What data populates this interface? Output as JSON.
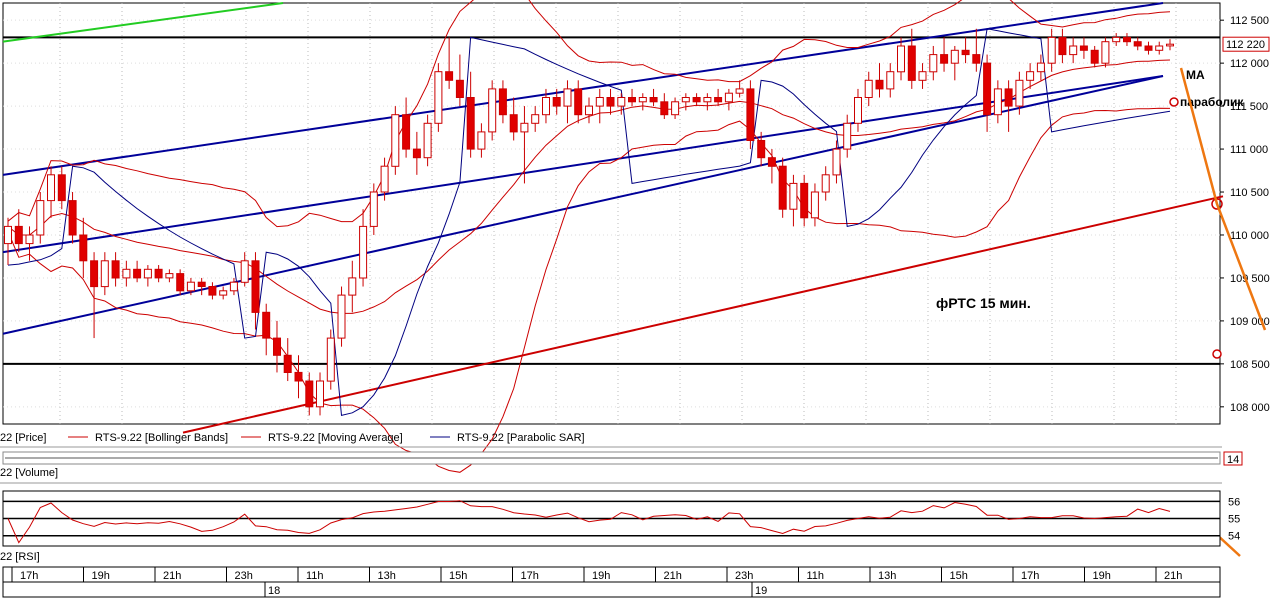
{
  "chart_data": {
    "type": "candlestick",
    "title": "фРТС   15 мин.",
    "price_axis": {
      "ylim": [
        107800,
        112700
      ],
      "ticks": [
        108000,
        108500,
        109000,
        109500,
        110000,
        110500,
        111000,
        111500,
        112000,
        112500
      ],
      "tick_labels": [
        "108 000",
        "108 500",
        "109 000",
        "109 500",
        "110 000",
        "110 500",
        "111 000",
        "111 500",
        "112 000",
        "112 500"
      ],
      "last_price_label": "112 220",
      "last_price": 112220
    },
    "legend": [
      {
        "label": "22 [Price]",
        "color": "#000000"
      },
      {
        "label": "RTS-9.22 [Bollinger Bands]",
        "color": "#cc0000"
      },
      {
        "label": "RTS-9.22 [Moving Average]",
        "color": "#cc0000"
      },
      {
        "label": "RTS-9.22 [Parabolic SAR]",
        "color": "#000080"
      }
    ],
    "annotations": {
      "ma": "MA",
      "sar": "параболик",
      "chart_label": "фРТС   15 мин."
    },
    "horizontal_levels": [
      112300,
      108500
    ],
    "channel_lines": [
      {
        "color": "#000099",
        "from": [
          0,
          110700
        ],
        "to": [
          1160,
          112700
        ]
      },
      {
        "color": "#000099",
        "from": [
          0,
          109800
        ],
        "to": [
          1160,
          111850
        ]
      },
      {
        "color": "#000099",
        "from": [
          0,
          108850
        ],
        "to": [
          1160,
          111850
        ]
      },
      {
        "color": "#cc0000",
        "from": [
          180,
          107700
        ],
        "to": [
          1220,
          110450
        ]
      },
      {
        "color": "#22cc22",
        "from": [
          0,
          112250
        ],
        "to": [
          280,
          112700
        ]
      }
    ],
    "candles": [
      {
        "o": 109900,
        "h": 110200,
        "l": 109650,
        "c": 110100
      },
      {
        "o": 110100,
        "h": 110300,
        "l": 109800,
        "c": 109900
      },
      {
        "o": 109900,
        "h": 110100,
        "l": 109700,
        "c": 110000
      },
      {
        "o": 110000,
        "h": 110500,
        "l": 109900,
        "c": 110400
      },
      {
        "o": 110400,
        "h": 110800,
        "l": 110200,
        "c": 110700
      },
      {
        "o": 110700,
        "h": 110800,
        "l": 110300,
        "c": 110400
      },
      {
        "o": 110400,
        "h": 110500,
        "l": 109900,
        "c": 110000
      },
      {
        "o": 110000,
        "h": 110200,
        "l": 109500,
        "c": 109700
      },
      {
        "o": 109700,
        "h": 109800,
        "l": 108800,
        "c": 109400
      },
      {
        "o": 109400,
        "h": 109800,
        "l": 109300,
        "c": 109700
      },
      {
        "o": 109700,
        "h": 109800,
        "l": 109400,
        "c": 109500
      },
      {
        "o": 109500,
        "h": 109700,
        "l": 109400,
        "c": 109600
      },
      {
        "o": 109600,
        "h": 109700,
        "l": 109450,
        "c": 109500
      },
      {
        "o": 109500,
        "h": 109650,
        "l": 109400,
        "c": 109600
      },
      {
        "o": 109600,
        "h": 109650,
        "l": 109450,
        "c": 109500
      },
      {
        "o": 109500,
        "h": 109600,
        "l": 109450,
        "c": 109550
      },
      {
        "o": 109550,
        "h": 109600,
        "l": 109300,
        "c": 109350
      },
      {
        "o": 109350,
        "h": 109500,
        "l": 109300,
        "c": 109450
      },
      {
        "o": 109450,
        "h": 109500,
        "l": 109300,
        "c": 109400
      },
      {
        "o": 109400,
        "h": 109450,
        "l": 109250,
        "c": 109300
      },
      {
        "o": 109300,
        "h": 109400,
        "l": 109250,
        "c": 109350
      },
      {
        "o": 109350,
        "h": 109500,
        "l": 109300,
        "c": 109450
      },
      {
        "o": 109450,
        "h": 109800,
        "l": 109400,
        "c": 109700
      },
      {
        "o": 109700,
        "h": 109800,
        "l": 108900,
        "c": 109100
      },
      {
        "o": 109100,
        "h": 109200,
        "l": 108600,
        "c": 108800
      },
      {
        "o": 108800,
        "h": 109000,
        "l": 108400,
        "c": 108600
      },
      {
        "o": 108600,
        "h": 108800,
        "l": 108300,
        "c": 108400
      },
      {
        "o": 108400,
        "h": 108600,
        "l": 108100,
        "c": 108300
      },
      {
        "o": 108300,
        "h": 108400,
        "l": 107900,
        "c": 108000
      },
      {
        "o": 108000,
        "h": 108400,
        "l": 107900,
        "c": 108300
      },
      {
        "o": 108300,
        "h": 108900,
        "l": 108200,
        "c": 108800
      },
      {
        "o": 108800,
        "h": 109400,
        "l": 108700,
        "c": 109300
      },
      {
        "o": 109300,
        "h": 109700,
        "l": 109100,
        "c": 109500
      },
      {
        "o": 109500,
        "h": 110300,
        "l": 109400,
        "c": 110100
      },
      {
        "o": 110100,
        "h": 110600,
        "l": 110000,
        "c": 110500
      },
      {
        "o": 110500,
        "h": 110900,
        "l": 110400,
        "c": 110800
      },
      {
        "o": 110800,
        "h": 111500,
        "l": 110700,
        "c": 111400
      },
      {
        "o": 111400,
        "h": 111600,
        "l": 110900,
        "c": 111000
      },
      {
        "o": 111000,
        "h": 111200,
        "l": 110700,
        "c": 110900
      },
      {
        "o": 110900,
        "h": 111400,
        "l": 110800,
        "c": 111300
      },
      {
        "o": 111300,
        "h": 112000,
        "l": 111200,
        "c": 111900
      },
      {
        "o": 111900,
        "h": 112300,
        "l": 111700,
        "c": 111800
      },
      {
        "o": 111800,
        "h": 112100,
        "l": 111500,
        "c": 111600
      },
      {
        "o": 111600,
        "h": 111900,
        "l": 110900,
        "c": 111000
      },
      {
        "o": 111000,
        "h": 111300,
        "l": 110900,
        "c": 111200
      },
      {
        "o": 111200,
        "h": 111800,
        "l": 111100,
        "c": 111700
      },
      {
        "o": 111700,
        "h": 111800,
        "l": 111300,
        "c": 111400
      },
      {
        "o": 111400,
        "h": 111600,
        "l": 111100,
        "c": 111200
      },
      {
        "o": 111200,
        "h": 111500,
        "l": 110600,
        "c": 111300
      },
      {
        "o": 111300,
        "h": 111500,
        "l": 111200,
        "c": 111400
      },
      {
        "o": 111400,
        "h": 111700,
        "l": 111300,
        "c": 111600
      },
      {
        "o": 111600,
        "h": 111700,
        "l": 111400,
        "c": 111500
      },
      {
        "o": 111500,
        "h": 111800,
        "l": 111300,
        "c": 111700
      },
      {
        "o": 111700,
        "h": 111800,
        "l": 111300,
        "c": 111400
      },
      {
        "o": 111400,
        "h": 111600,
        "l": 111300,
        "c": 111500
      },
      {
        "o": 111500,
        "h": 111700,
        "l": 111300,
        "c": 111600
      },
      {
        "o": 111600,
        "h": 111700,
        "l": 111400,
        "c": 111500
      },
      {
        "o": 111500,
        "h": 111650,
        "l": 111400,
        "c": 111600
      },
      {
        "o": 111600,
        "h": 111700,
        "l": 111500,
        "c": 111550
      },
      {
        "o": 111550,
        "h": 111650,
        "l": 111450,
        "c": 111600
      },
      {
        "o": 111600,
        "h": 111700,
        "l": 111500,
        "c": 111550
      },
      {
        "o": 111550,
        "h": 111650,
        "l": 111350,
        "c": 111400
      },
      {
        "o": 111400,
        "h": 111600,
        "l": 111350,
        "c": 111550
      },
      {
        "o": 111550,
        "h": 111650,
        "l": 111450,
        "c": 111600
      },
      {
        "o": 111600,
        "h": 111650,
        "l": 111500,
        "c": 111550
      },
      {
        "o": 111550,
        "h": 111650,
        "l": 111450,
        "c": 111600
      },
      {
        "o": 111600,
        "h": 111700,
        "l": 111500,
        "c": 111550
      },
      {
        "o": 111550,
        "h": 111700,
        "l": 111450,
        "c": 111650
      },
      {
        "o": 111650,
        "h": 111800,
        "l": 111600,
        "c": 111700
      },
      {
        "o": 111700,
        "h": 111800,
        "l": 111000,
        "c": 111100
      },
      {
        "o": 111100,
        "h": 111200,
        "l": 110800,
        "c": 110900
      },
      {
        "o": 110900,
        "h": 111000,
        "l": 110600,
        "c": 110800
      },
      {
        "o": 110800,
        "h": 110900,
        "l": 110200,
        "c": 110300
      },
      {
        "o": 110300,
        "h": 110700,
        "l": 110100,
        "c": 110600
      },
      {
        "o": 110600,
        "h": 110700,
        "l": 110100,
        "c": 110200
      },
      {
        "o": 110200,
        "h": 110600,
        "l": 110100,
        "c": 110500
      },
      {
        "o": 110500,
        "h": 110800,
        "l": 110400,
        "c": 110700
      },
      {
        "o": 110700,
        "h": 111100,
        "l": 110600,
        "c": 111000
      },
      {
        "o": 111000,
        "h": 111400,
        "l": 110900,
        "c": 111300
      },
      {
        "o": 111300,
        "h": 111700,
        "l": 111200,
        "c": 111600
      },
      {
        "o": 111600,
        "h": 111900,
        "l": 111500,
        "c": 111800
      },
      {
        "o": 111800,
        "h": 112000,
        "l": 111600,
        "c": 111700
      },
      {
        "o": 111700,
        "h": 112000,
        "l": 111600,
        "c": 111900
      },
      {
        "o": 111900,
        "h": 112300,
        "l": 111800,
        "c": 112200
      },
      {
        "o": 112200,
        "h": 112400,
        "l": 111700,
        "c": 111800
      },
      {
        "o": 111800,
        "h": 112000,
        "l": 111700,
        "c": 111900
      },
      {
        "o": 111900,
        "h": 112200,
        "l": 111800,
        "c": 112100
      },
      {
        "o": 112100,
        "h": 112300,
        "l": 111900,
        "c": 112000
      },
      {
        "o": 112000,
        "h": 112200,
        "l": 111800,
        "c": 112150
      },
      {
        "o": 112150,
        "h": 112300,
        "l": 112000,
        "c": 112100
      },
      {
        "o": 112100,
        "h": 112400,
        "l": 111900,
        "c": 112000
      },
      {
        "o": 112000,
        "h": 112100,
        "l": 111200,
        "c": 111400
      },
      {
        "o": 111400,
        "h": 111800,
        "l": 111300,
        "c": 111700
      },
      {
        "o": 111700,
        "h": 111800,
        "l": 111200,
        "c": 111500
      },
      {
        "o": 111500,
        "h": 111900,
        "l": 111400,
        "c": 111800
      },
      {
        "o": 111800,
        "h": 112000,
        "l": 111700,
        "c": 111900
      },
      {
        "o": 111900,
        "h": 112100,
        "l": 111800,
        "c": 112000
      },
      {
        "o": 112000,
        "h": 112400,
        "l": 111900,
        "c": 112300
      },
      {
        "o": 112300,
        "h": 112400,
        "l": 112000,
        "c": 112100
      },
      {
        "o": 112100,
        "h": 112300,
        "l": 112000,
        "c": 112200
      },
      {
        "o": 112200,
        "h": 112300,
        "l": 112050,
        "c": 112150
      },
      {
        "o": 112150,
        "h": 112200,
        "l": 111950,
        "c": 112000
      },
      {
        "o": 112000,
        "h": 112300,
        "l": 111950,
        "c": 112250
      },
      {
        "o": 112250,
        "h": 112350,
        "l": 112200,
        "c": 112300
      },
      {
        "o": 112300,
        "h": 112350,
        "l": 112200,
        "c": 112250
      },
      {
        "o": 112250,
        "h": 112300,
        "l": 112150,
        "c": 112200
      },
      {
        "o": 112200,
        "h": 112250,
        "l": 112100,
        "c": 112150
      },
      {
        "o": 112150,
        "h": 112250,
        "l": 112100,
        "c": 112200
      },
      {
        "o": 112200,
        "h": 112280,
        "l": 112150,
        "c": 112220
      }
    ],
    "volume": {
      "label": "22 [Volume]",
      "value_label": "14"
    },
    "rsi": {
      "label": "22 [RSI]",
      "ylim": [
        53.4,
        56.6
      ],
      "ticks": [
        54,
        55,
        56
      ],
      "tick_labels": [
        "54",
        "55",
        "56"
      ]
    },
    "time_axis": {
      "hour_labels": [
        "17h",
        "19h",
        "21h",
        "23h",
        "11h",
        "13h",
        "15h",
        "17h",
        "19h",
        "21h",
        "23h",
        "11h",
        "13h",
        "15h",
        "17h",
        "19h",
        "21h"
      ],
      "day_labels": [
        "18",
        "19"
      ]
    }
  }
}
